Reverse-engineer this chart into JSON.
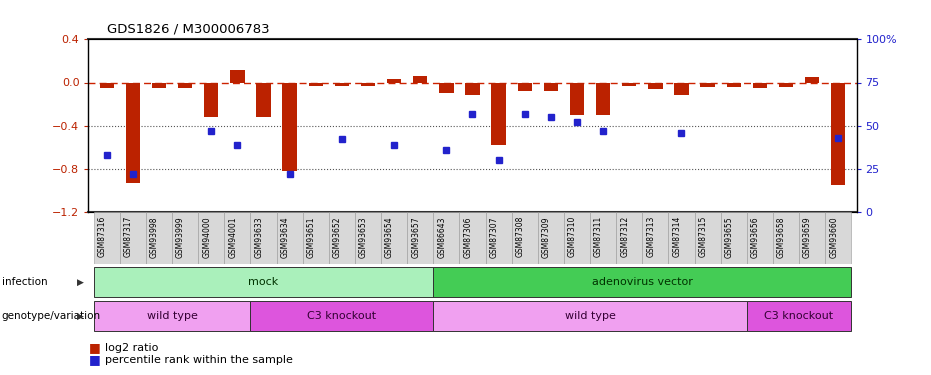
{
  "title": "GDS1826 / M300006783",
  "samples": [
    "GSM87316",
    "GSM87317",
    "GSM93998",
    "GSM93999",
    "GSM94000",
    "GSM94001",
    "GSM93633",
    "GSM93634",
    "GSM93651",
    "GSM93652",
    "GSM93653",
    "GSM93654",
    "GSM93657",
    "GSM86643",
    "GSM87306",
    "GSM87307",
    "GSM87308",
    "GSM87309",
    "GSM87310",
    "GSM87311",
    "GSM87312",
    "GSM87313",
    "GSM87314",
    "GSM87315",
    "GSM93655",
    "GSM93656",
    "GSM93658",
    "GSM93659",
    "GSM93660"
  ],
  "log2_ratio": [
    -0.05,
    -0.93,
    -0.05,
    -0.05,
    -0.32,
    0.12,
    -0.32,
    -0.82,
    -0.03,
    -0.03,
    -0.03,
    0.03,
    0.06,
    -0.1,
    -0.12,
    -0.58,
    -0.08,
    -0.08,
    -0.3,
    -0.3,
    -0.03,
    -0.06,
    -0.12,
    -0.04,
    -0.04,
    -0.05,
    -0.04,
    0.05,
    -0.95
  ],
  "percentile_rank": [
    33,
    22,
    null,
    null,
    47,
    39,
    null,
    22,
    null,
    42,
    null,
    39,
    null,
    36,
    57,
    30,
    57,
    55,
    52,
    47,
    null,
    null,
    46,
    null,
    null,
    null,
    null,
    null,
    43
  ],
  "infection_groups": [
    {
      "label": "mock",
      "start": 0,
      "end": 13,
      "color": "#aaf0bb"
    },
    {
      "label": "adenovirus vector",
      "start": 13,
      "end": 29,
      "color": "#44cc55"
    }
  ],
  "genotype_groups": [
    {
      "label": "wild type",
      "start": 0,
      "end": 6,
      "color": "#f0a0f0"
    },
    {
      "label": "C3 knockout",
      "start": 6,
      "end": 13,
      "color": "#dd55dd"
    },
    {
      "label": "wild type",
      "start": 13,
      "end": 25,
      "color": "#f0a0f0"
    },
    {
      "label": "C3 knockout",
      "start": 25,
      "end": 29,
      "color": "#dd55dd"
    }
  ],
  "ylim_left": [
    -1.2,
    0.4
  ],
  "ylim_right": [
    0,
    100
  ],
  "bar_color": "#bb2200",
  "dot_color": "#2222cc",
  "hline_color": "#cc2200",
  "bg_color": "#ffffff",
  "xtick_bg": "#d8d8d8"
}
